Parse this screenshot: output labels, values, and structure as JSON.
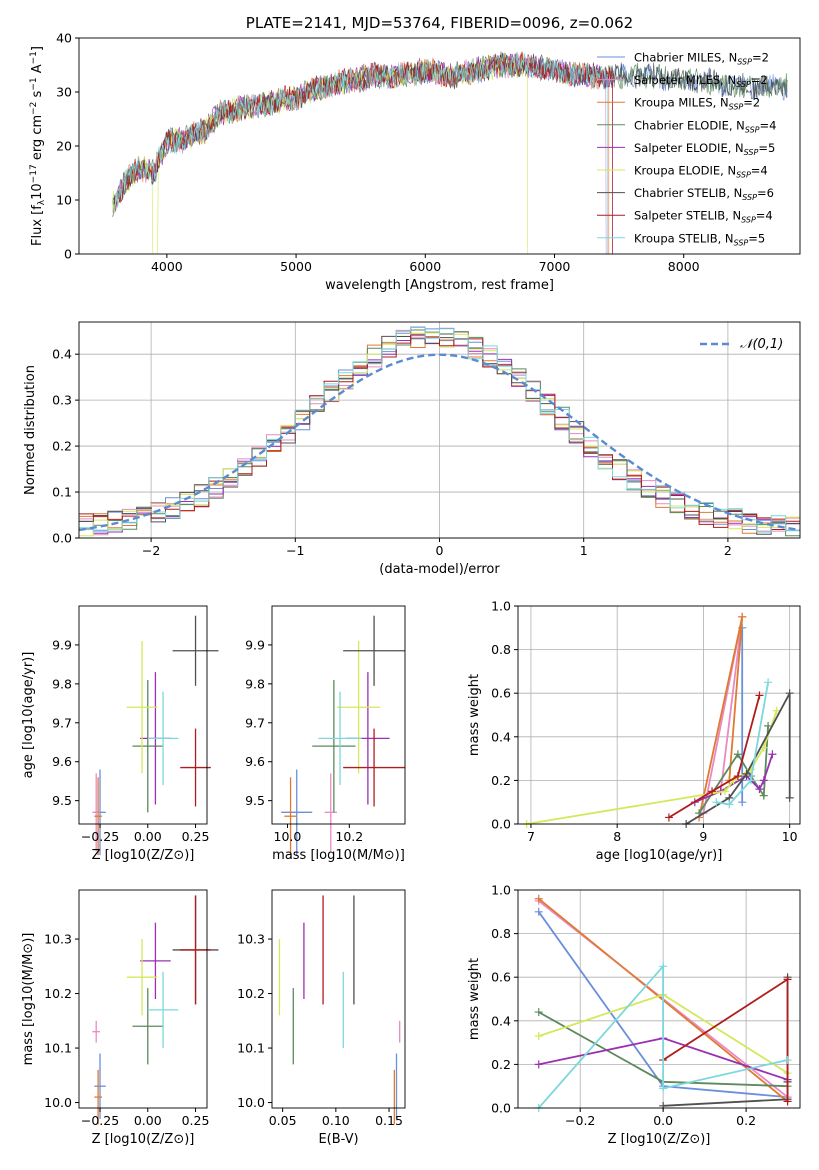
{
  "series_meta": [
    {
      "name": "Chabrier MILES",
      "nssp": "2",
      "color": "#6a8fdc"
    },
    {
      "name": "Salpeter MILES",
      "nssp": "2",
      "color": "#e88ac4"
    },
    {
      "name": "Kroupa MILES",
      "nssp": "2",
      "color": "#e07a30"
    },
    {
      "name": "Chabrier ELODIE",
      "nssp": "4",
      "color": "#5c8a5c"
    },
    {
      "name": "Salpeter ELODIE",
      "nssp": "5",
      "color": "#9b30b0"
    },
    {
      "name": "Kroupa ELODIE",
      "nssp": "4",
      "color": "#d4e85a"
    },
    {
      "name": "Chabrier STELIB",
      "nssp": "6",
      "color": "#505050"
    },
    {
      "name": "Salpeter STELIB",
      "nssp": "4",
      "color": "#b01c1c"
    },
    {
      "name": "Kroupa STELIB",
      "nssp": "5",
      "color": "#7cd8dc"
    }
  ],
  "chart_data": [
    {
      "id": "spectrum",
      "type": "line",
      "title": "PLATE=2141, MJD=53764, FIBERID=0096, z=0.062",
      "xlabel": "wavelength [Angstrom, rest frame]",
      "ylabel": "Flux [fλ10^-17 erg cm^-2 s^-1 A^-1]",
      "xlim": [
        3320,
        8900
      ],
      "ylim": [
        0,
        40
      ],
      "xticks": [
        4000,
        5000,
        6000,
        7000,
        8000
      ],
      "yticks": [
        0,
        10,
        20,
        30,
        40
      ],
      "legend": "right",
      "grid": false,
      "continuum": {
        "x": [
          3580,
          3700,
          3800,
          3900,
          4000,
          4100,
          4200,
          4300,
          4400,
          4600,
          4800,
          5000,
          5200,
          5400,
          5600,
          5800,
          6000,
          6200,
          6400,
          6600,
          6800,
          7000,
          7200,
          7400,
          7600,
          7800,
          8000,
          8200,
          8400,
          8600,
          8800
        ],
        "y": [
          9,
          14,
          16,
          15,
          21,
          21,
          22,
          23,
          26,
          27,
          28,
          29,
          31,
          32,
          33,
          33,
          34,
          33,
          34,
          35,
          35,
          34,
          33,
          33,
          33,
          33,
          32,
          32,
          31,
          31,
          31
        ]
      }
    },
    {
      "id": "residuals",
      "type": "histogram",
      "title": "",
      "xlabel": "(data-model)/error",
      "ylabel": "Normed distribution",
      "xlim": [
        -2.5,
        2.5
      ],
      "ylim": [
        0,
        0.47
      ],
      "xticks": [
        -2,
        -1,
        0,
        1,
        2
      ],
      "yticks": [
        0,
        0.1,
        0.2,
        0.3,
        0.4
      ],
      "legend": "top-right",
      "reference": {
        "name": "𝒩(0,1)",
        "mean": 0,
        "sigma": 1
      },
      "bin_width": 0.1,
      "grid": true
    },
    {
      "id": "age_vs_Z",
      "type": "errorbar",
      "xlabel": "Z [log10(Z/Z⊙)]",
      "ylabel": "age  [log10(age/yr)]",
      "xlim": [
        -0.36,
        0.31
      ],
      "ylim": [
        9.44,
        10.0
      ],
      "xticks": [
        -0.25,
        0,
        0.25
      ],
      "yticks": [
        9.5,
        9.6,
        9.7,
        9.8,
        9.9
      ],
      "points": [
        {
          "series": "Chabrier MILES",
          "x": -0.25,
          "xerr": 0.03,
          "y": 9.47,
          "yerr": 0.11
        },
        {
          "series": "Salpeter MILES",
          "x": -0.27,
          "xerr": 0.02,
          "y": 9.47,
          "yerr": 0.1
        },
        {
          "series": "Kroupa MILES",
          "x": -0.26,
          "xerr": 0.02,
          "y": 9.46,
          "yerr": 0.1
        },
        {
          "series": "Chabrier ELODIE",
          "x": 0.0,
          "xerr": 0.08,
          "y": 9.64,
          "yerr": 0.17
        },
        {
          "series": "Salpeter ELODIE",
          "x": 0.04,
          "xerr": 0.08,
          "y": 9.66,
          "yerr": 0.17
        },
        {
          "series": "Kroupa ELODIE",
          "x": -0.03,
          "xerr": 0.08,
          "y": 9.74,
          "yerr": 0.17
        },
        {
          "series": "Chabrier STELIB",
          "x": 0.25,
          "xerr": 0.12,
          "y": 9.885,
          "yerr": 0.09
        },
        {
          "series": "Salpeter STELIB",
          "x": 0.25,
          "xerr": 0.08,
          "y": 9.585,
          "yerr": 0.1
        },
        {
          "series": "Kroupa STELIB",
          "x": 0.08,
          "xerr": 0.08,
          "y": 9.66,
          "yerr": 0.12
        }
      ]
    },
    {
      "id": "age_vs_mass",
      "type": "errorbar",
      "xlabel": "mass [log10(M/M⊙)]",
      "ylabel": "",
      "xlim": [
        9.95,
        10.38
      ],
      "ylim": [
        9.44,
        10.0
      ],
      "xticks": [
        10.0,
        10.2
      ],
      "yticks": [
        9.5,
        9.6,
        9.7,
        9.8,
        9.9
      ],
      "points": [
        {
          "series": "Chabrier MILES",
          "x": 10.03,
          "xerr": 0.05,
          "y": 9.47,
          "yerr": 0.11
        },
        {
          "series": "Salpeter MILES",
          "x": 10.14,
          "xerr": 0.02,
          "y": 9.47,
          "yerr": 0.1
        },
        {
          "series": "Kroupa MILES",
          "x": 10.01,
          "xerr": 0.02,
          "y": 9.46,
          "yerr": 0.1
        },
        {
          "series": "Chabrier ELODIE",
          "x": 10.15,
          "xerr": 0.07,
          "y": 9.64,
          "yerr": 0.17
        },
        {
          "series": "Salpeter ELODIE",
          "x": 10.26,
          "xerr": 0.07,
          "y": 9.66,
          "yerr": 0.17
        },
        {
          "series": "Kroupa ELODIE",
          "x": 10.23,
          "xerr": 0.07,
          "y": 9.74,
          "yerr": 0.17
        },
        {
          "series": "Chabrier STELIB",
          "x": 10.28,
          "xerr": 0.1,
          "y": 9.885,
          "yerr": 0.09
        },
        {
          "series": "Salpeter STELIB",
          "x": 10.28,
          "xerr": 0.1,
          "y": 9.585,
          "yerr": 0.1
        },
        {
          "series": "Kroupa STELIB",
          "x": 10.17,
          "xerr": 0.07,
          "y": 9.66,
          "yerr": 0.12
        }
      ]
    },
    {
      "id": "weight_vs_age",
      "type": "line",
      "xlabel": "age  [log10(age/yr)]",
      "ylabel": "mass weight",
      "xlim": [
        6.85,
        10.12
      ],
      "ylim": [
        0,
        1.0
      ],
      "xticks": [
        7,
        8,
        9,
        10
      ],
      "yticks": [
        0,
        0.2,
        0.4,
        0.6,
        0.8,
        1.0
      ],
      "grid": true,
      "series": [
        {
          "series": "Chabrier MILES",
          "x": [
            9.45,
            9.45,
            9.45
          ],
          "y": [
            0.1,
            0.9,
            0.2
          ]
        },
        {
          "series": "Salpeter MILES",
          "x": [
            9.0,
            9.45,
            9.2
          ],
          "y": [
            0.05,
            0.95,
            0.15
          ]
        },
        {
          "series": "Kroupa MILES",
          "x": [
            8.95,
            9.45,
            9.3
          ],
          "y": [
            0.03,
            0.95,
            0.2
          ]
        },
        {
          "series": "Chabrier ELODIE",
          "x": [
            8.95,
            9.4,
            9.55,
            9.7,
            9.75
          ],
          "y": [
            0.05,
            0.32,
            0.22,
            0.13,
            0.45
          ]
        },
        {
          "series": "Salpeter ELODIE",
          "x": [
            8.9,
            9.2,
            9.5,
            9.65,
            9.7,
            9.8
          ],
          "y": [
            0.1,
            0.15,
            0.22,
            0.16,
            0.2,
            0.32
          ]
        },
        {
          "series": "Kroupa ELODIE",
          "x": [
            6.95,
            9.25,
            9.35,
            9.55,
            9.7,
            9.85
          ],
          "y": [
            0.0,
            0.15,
            0.2,
            0.25,
            0.35,
            0.52
          ]
        },
        {
          "series": "Chabrier STELIB",
          "x": [
            8.8,
            9.3,
            9.5,
            10.0,
            10.0
          ],
          "y": [
            0.0,
            0.12,
            0.23,
            0.6,
            0.12
          ]
        },
        {
          "series": "Salpeter STELIB",
          "x": [
            8.6,
            9.1,
            9.4,
            9.65
          ],
          "y": [
            0.03,
            0.15,
            0.22,
            0.59
          ]
        },
        {
          "series": "Kroupa STELIB",
          "x": [
            9.15,
            9.3,
            9.55,
            9.75
          ],
          "y": [
            0.1,
            0.09,
            0.2,
            0.65
          ]
        }
      ]
    },
    {
      "id": "mass_vs_Z",
      "type": "errorbar",
      "xlabel": "Z [log10(Z/Z⊙)]",
      "ylabel": "mass [log10(M/M⊙)]",
      "xlim": [
        -0.36,
        0.31
      ],
      "ylim": [
        9.99,
        10.39
      ],
      "xticks": [
        -0.25,
        0,
        0.25
      ],
      "yticks": [
        10.0,
        10.1,
        10.2,
        10.3
      ],
      "points": [
        {
          "series": "Chabrier MILES",
          "x": -0.25,
          "xerr": 0.03,
          "y": 10.03,
          "yerr": 0.06
        },
        {
          "series": "Salpeter MILES",
          "x": -0.27,
          "xerr": 0.02,
          "y": 10.13,
          "yerr": 0.02
        },
        {
          "series": "Kroupa MILES",
          "x": -0.26,
          "xerr": 0.02,
          "y": 10.01,
          "yerr": 0.05
        },
        {
          "series": "Chabrier ELODIE",
          "x": 0.0,
          "xerr": 0.08,
          "y": 10.14,
          "yerr": 0.07
        },
        {
          "series": "Salpeter ELODIE",
          "x": 0.04,
          "xerr": 0.08,
          "y": 10.26,
          "yerr": 0.07
        },
        {
          "series": "Kroupa ELODIE",
          "x": -0.03,
          "xerr": 0.08,
          "y": 10.23,
          "yerr": 0.07
        },
        {
          "series": "Chabrier STELIB",
          "x": 0.25,
          "xerr": 0.12,
          "y": 10.28,
          "yerr": 0.1
        },
        {
          "series": "Salpeter STELIB",
          "x": 0.25,
          "xerr": 0.08,
          "y": 10.28,
          "yerr": 0.1
        },
        {
          "series": "Kroupa STELIB",
          "x": 0.08,
          "xerr": 0.08,
          "y": 10.17,
          "yerr": 0.07
        }
      ]
    },
    {
      "id": "mass_vs_ebv",
      "type": "errorbar",
      "xlabel": "E(B-V)",
      "ylabel": "",
      "xlim": [
        0.04,
        0.165
      ],
      "ylim": [
        9.99,
        10.39
      ],
      "xticks": [
        0.05,
        0.1,
        0.15
      ],
      "yticks": [
        10.0,
        10.1,
        10.2,
        10.3
      ],
      "points": [
        {
          "series": "Chabrier MILES",
          "x": 0.157,
          "xerr": 0,
          "y": 10.03,
          "yerr": 0.06
        },
        {
          "series": "Salpeter MILES",
          "x": 0.16,
          "xerr": 0,
          "y": 10.13,
          "yerr": 0.02
        },
        {
          "series": "Kroupa MILES",
          "x": 0.155,
          "xerr": 0,
          "y": 10.01,
          "yerr": 0.05
        },
        {
          "series": "Chabrier ELODIE",
          "x": 0.06,
          "xerr": 0,
          "y": 10.14,
          "yerr": 0.07
        },
        {
          "series": "Salpeter ELODIE",
          "x": 0.07,
          "xerr": 0,
          "y": 10.26,
          "yerr": 0.07
        },
        {
          "series": "Kroupa ELODIE",
          "x": 0.047,
          "xerr": 0,
          "y": 10.23,
          "yerr": 0.07
        },
        {
          "series": "Chabrier STELIB",
          "x": 0.117,
          "xerr": 0,
          "y": 10.28,
          "yerr": 0.1
        },
        {
          "series": "Salpeter STELIB",
          "x": 0.088,
          "xerr": 0,
          "y": 10.28,
          "yerr": 0.1
        },
        {
          "series": "Kroupa STELIB",
          "x": 0.107,
          "xerr": 0,
          "y": 10.17,
          "yerr": 0.07
        }
      ]
    },
    {
      "id": "weight_vs_Z",
      "type": "line",
      "xlabel": "Z [log10(Z/Z⊙)]",
      "ylabel": "mass weight",
      "xlim": [
        -0.35,
        0.33
      ],
      "ylim": [
        0,
        1.0
      ],
      "xticks": [
        -0.2,
        0.0,
        0.2
      ],
      "yticks": [
        0,
        0.2,
        0.4,
        0.6,
        0.8,
        1.0
      ],
      "grid": true,
      "series": [
        {
          "series": "Chabrier MILES",
          "x": [
            -0.3,
            0.0,
            0.3
          ],
          "y": [
            0.9,
            0.1,
            0.05
          ]
        },
        {
          "series": "Salpeter MILES",
          "x": [
            -0.3,
            0.3
          ],
          "y": [
            0.95,
            0.05
          ]
        },
        {
          "series": "Kroupa MILES",
          "x": [
            -0.3,
            0.3
          ],
          "y": [
            0.96,
            0.03
          ]
        },
        {
          "series": "Chabrier ELODIE",
          "x": [
            -0.3,
            0.0,
            0.3
          ],
          "y": [
            0.44,
            0.12,
            0.1
          ]
        },
        {
          "series": "Salpeter ELODIE",
          "x": [
            -0.3,
            0.0,
            0.3
          ],
          "y": [
            0.2,
            0.32,
            0.13
          ]
        },
        {
          "series": "Kroupa ELODIE",
          "x": [
            -0.3,
            0.0,
            0.3
          ],
          "y": [
            0.33,
            0.52,
            0.16
          ]
        },
        {
          "series": "Chabrier STELIB",
          "x": [
            0.0,
            0.3,
            0.3,
            0.3
          ],
          "y": [
            0.01,
            0.04,
            0.6,
            0.12
          ]
        },
        {
          "series": "Salpeter STELIB",
          "x": [
            0.0,
            0.3,
            0.3
          ],
          "y": [
            0.22,
            0.59,
            0.03
          ]
        },
        {
          "series": "Kroupa STELIB",
          "x": [
            -0.3,
            0.0,
            0.0,
            0.3
          ],
          "y": [
            0.0,
            0.65,
            0.09,
            0.22
          ]
        }
      ]
    }
  ]
}
